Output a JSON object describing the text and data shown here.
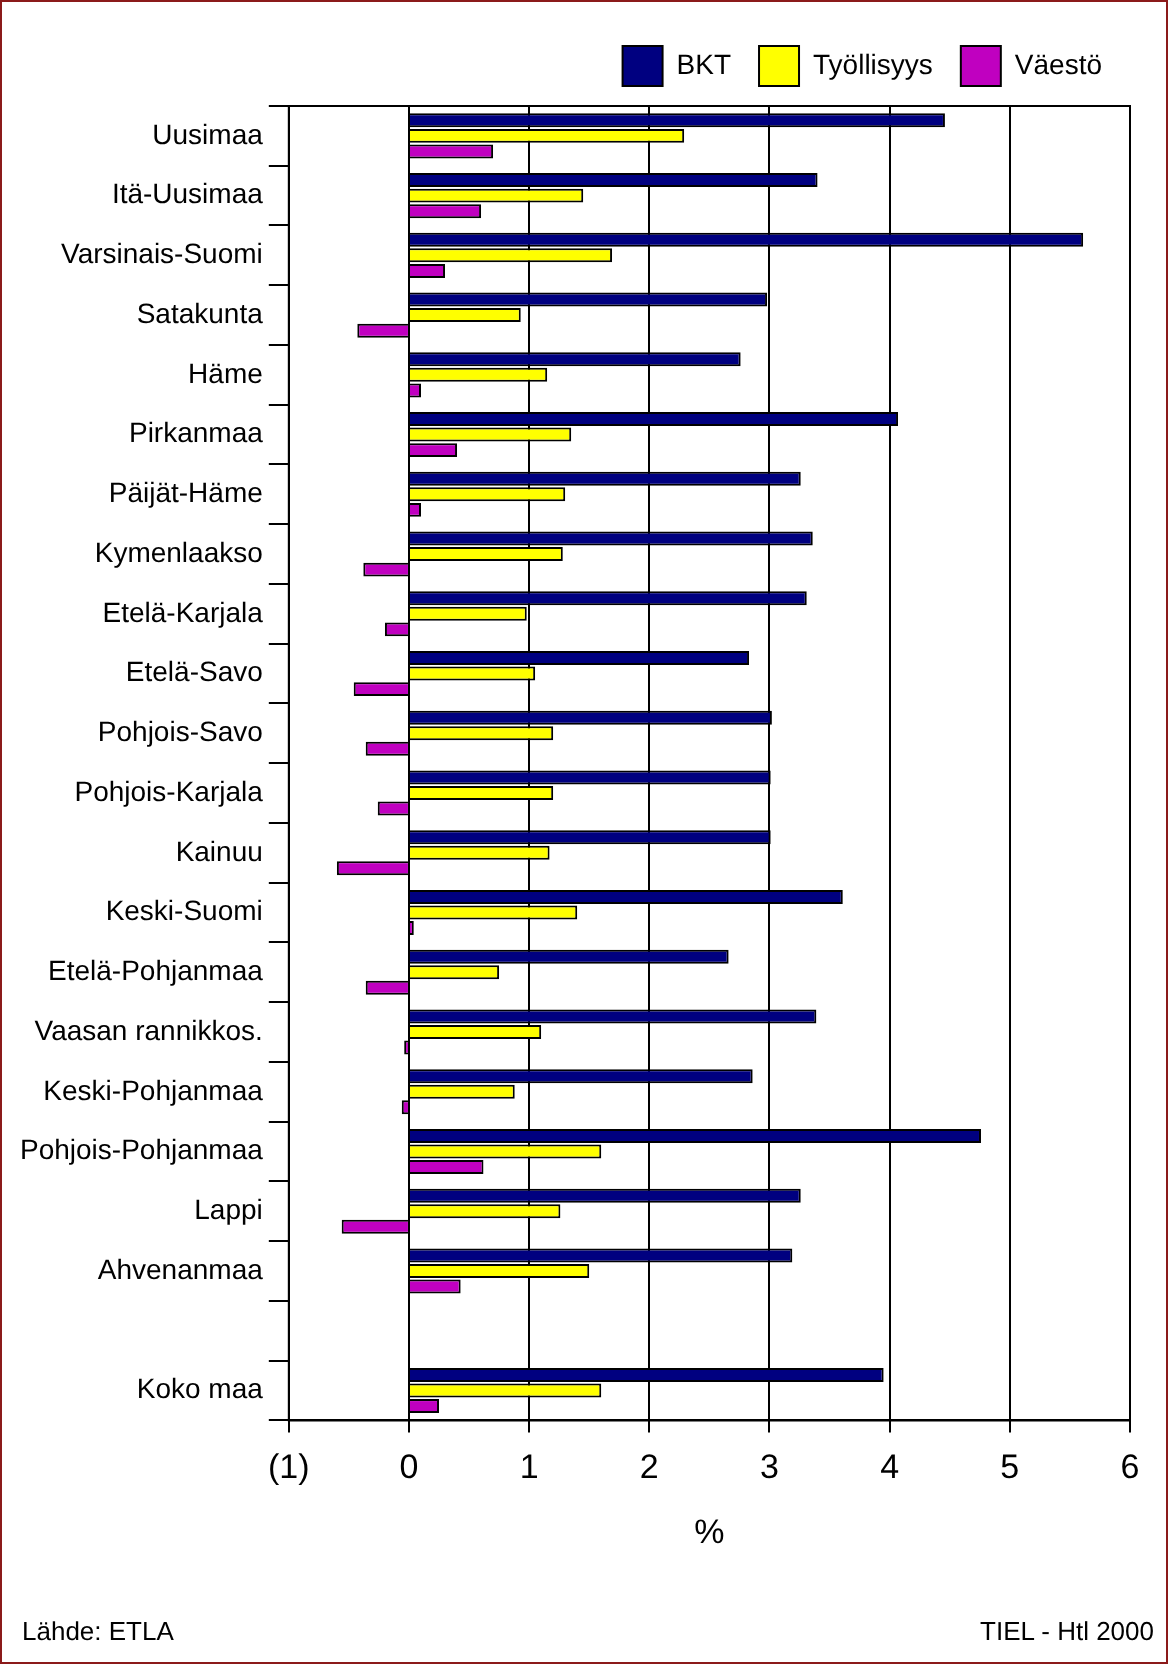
{
  "chart_data": {
    "type": "bar",
    "orientation": "horizontal",
    "categories": [
      "Uusimaa",
      "Itä-Uusimaa",
      "Varsinais-Suomi",
      "Satakunta",
      "Häme",
      "Pirkanmaa",
      "Päijät-Häme",
      "Kymenlaakso",
      "Etelä-Karjala",
      "Etelä-Savo",
      "Pohjois-Savo",
      "Pohjois-Karjala",
      "Kainuu",
      "Keski-Suomi",
      "Etelä-Pohjanmaa",
      "Vaasan rannikkos.",
      "Keski-Pohjanmaa",
      "Pohjois-Pohjanmaa",
      "Lappi",
      "Ahvenanmaa",
      null,
      "Koko maa"
    ],
    "series": [
      {
        "name": "BKT",
        "color": "#000080",
        "values": [
          4.46,
          3.4,
          5.61,
          2.98,
          2.76,
          4.07,
          3.26,
          3.36,
          3.31,
          2.83,
          3.02,
          3.01,
          3.01,
          3.61,
          2.66,
          3.39,
          2.86,
          4.76,
          3.26,
          3.19,
          null,
          3.95
        ]
      },
      {
        "name": "Työllisyys",
        "color": "#ffff00",
        "values": [
          2.29,
          1.45,
          1.69,
          0.93,
          1.15,
          1.35,
          1.3,
          1.28,
          0.98,
          1.05,
          1.2,
          1.2,
          1.17,
          1.4,
          0.75,
          1.1,
          0.88,
          1.6,
          1.26,
          1.5,
          null,
          1.6
        ]
      },
      {
        "name": "Väestö",
        "color": "#c000c0",
        "values": [
          0.7,
          0.6,
          0.3,
          -0.43,
          0.1,
          0.4,
          0.1,
          -0.38,
          -0.2,
          -0.46,
          -0.36,
          -0.26,
          -0.6,
          0.04,
          -0.36,
          -0.04,
          -0.06,
          0.62,
          -0.56,
          0.43,
          null,
          0.25
        ]
      }
    ],
    "xlabel": "%",
    "xlim": [
      -1,
      6
    ],
    "xticks": [
      {
        "value": -1,
        "label": "(1)"
      },
      0,
      1,
      2,
      3,
      4,
      5,
      6
    ],
    "grid": "x",
    "legend": "top right",
    "annotations": [
      "Lähde: ETLA",
      "TIEL - Htl 2000"
    ]
  }
}
